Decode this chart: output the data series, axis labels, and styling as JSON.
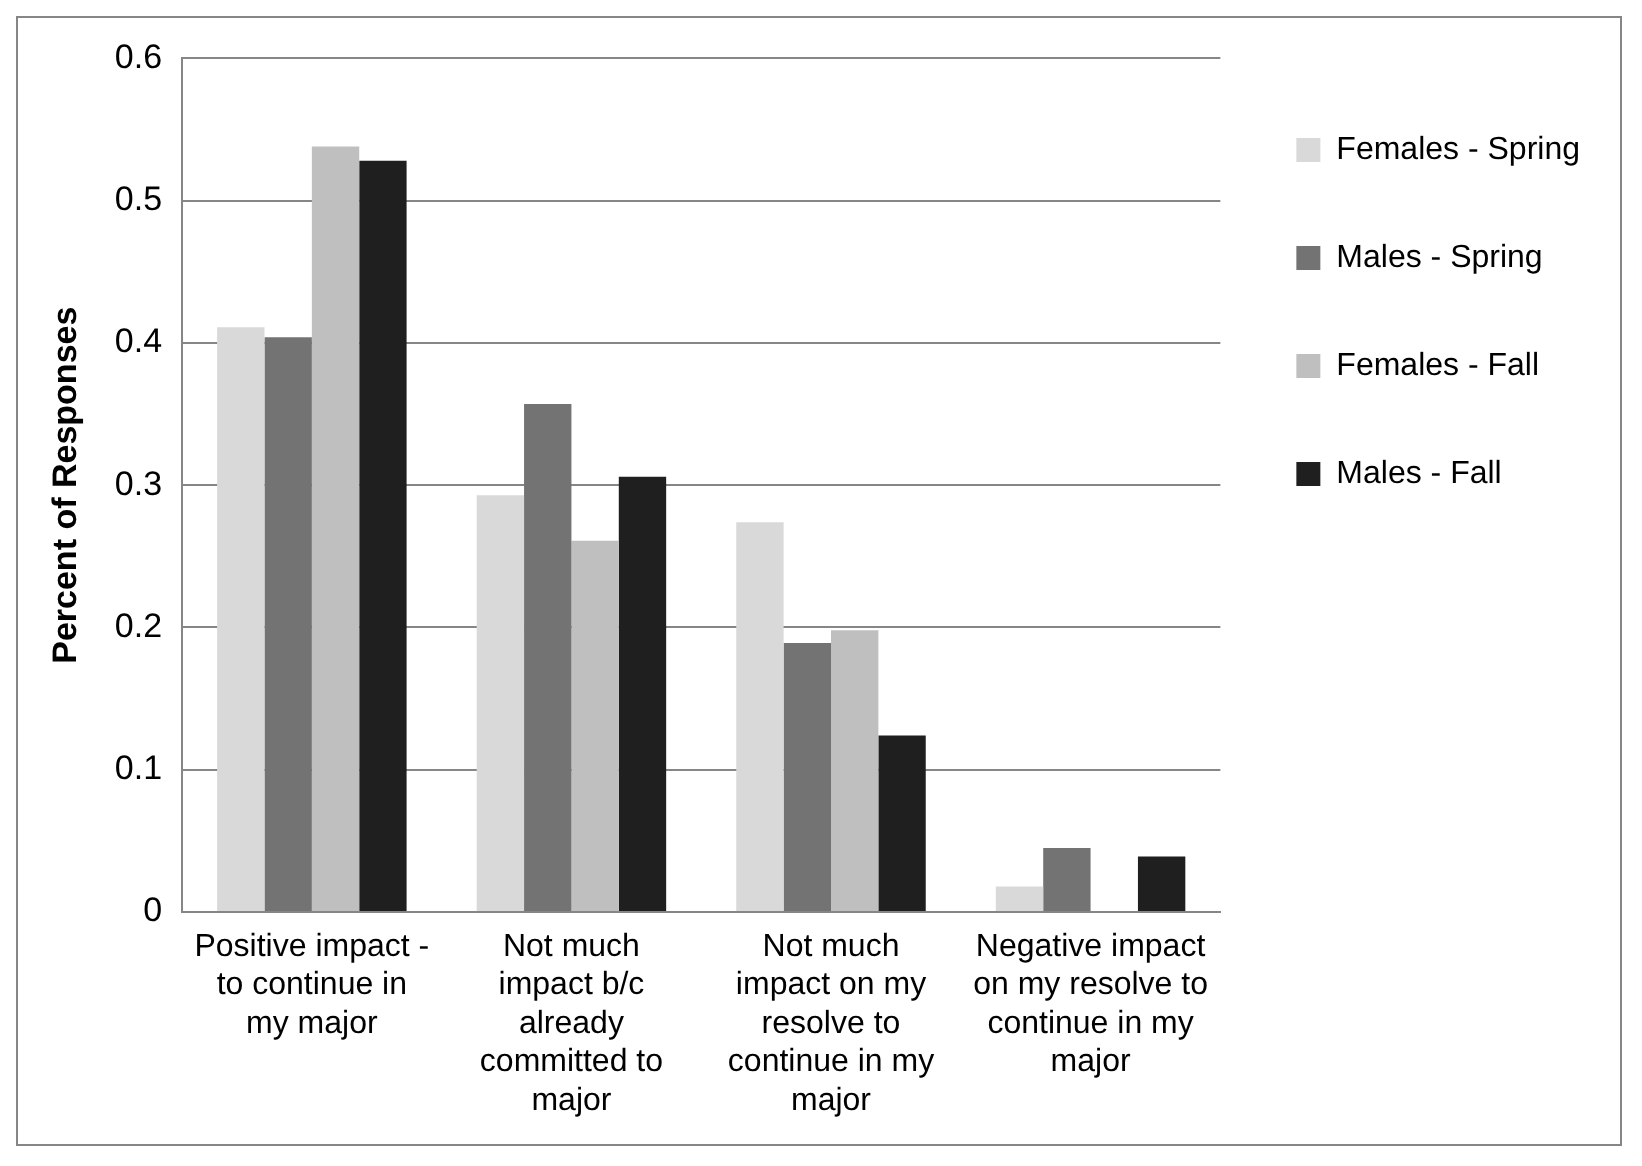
{
  "chart_data": {
    "type": "bar",
    "ylabel": "Percent of Responses",
    "categories": [
      "Positive impact - to continue in my major",
      "Not much impact b/c already committed to major",
      "Not much impact on my resolve to continue in my major",
      "Negative impact on my resolve to continue in my major"
    ],
    "series": [
      {
        "name": "Females - Spring",
        "color": "#d9d9d9",
        "values": [
          0.411,
          0.293,
          0.274,
          0.018
        ]
      },
      {
        "name": "Males - Spring",
        "color": "#737373",
        "values": [
          0.404,
          0.357,
          0.189,
          0.045
        ]
      },
      {
        "name": "Females - Fall",
        "color": "#bfbfbf",
        "values": [
          0.538,
          0.261,
          0.198,
          0
        ]
      },
      {
        "name": "Males - Fall",
        "color": "#1f1f1f",
        "values": [
          0.528,
          0.306,
          0.124,
          0.039
        ]
      }
    ],
    "ylim": [
      0,
      0.6
    ],
    "yticks": [
      0,
      0.1,
      0.2,
      0.3,
      0.4,
      0.5,
      0.6
    ],
    "grid": "y",
    "legend": "top right"
  }
}
